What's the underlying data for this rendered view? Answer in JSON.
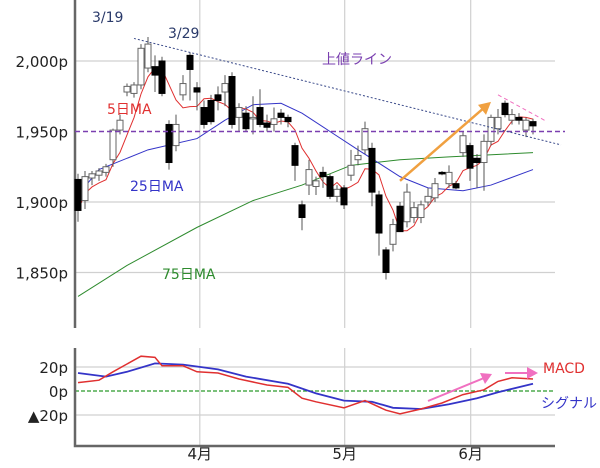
{
  "chart_data": [
    {
      "type": "candlestick",
      "x_unit": "trading day index",
      "y_unit": "p",
      "ylim": [
        1810,
        2043
      ],
      "y_ticks": [
        {
          "value": 2000,
          "label": "2,000p"
        },
        {
          "value": 1950,
          "label": "1,950p",
          "color": "#7a3fb0"
        },
        {
          "value": 1900,
          "label": "1,900p"
        },
        {
          "value": 1850,
          "label": "1,850p"
        }
      ],
      "month_ticks": [
        {
          "x": 17.4,
          "label": "4月"
        },
        {
          "x": 38.1,
          "label": "5月"
        },
        {
          "x": 56.1,
          "label": "6月"
        }
      ],
      "grid": true,
      "ohlc": [
        [
          1916,
          1920,
          1886,
          1894
        ],
        [
          1901,
          1922,
          1895,
          1918
        ],
        [
          1917,
          1922,
          1912,
          1920
        ],
        [
          1919,
          1924,
          1915,
          1922
        ],
        [
          1921,
          1927,
          1918,
          1925
        ],
        [
          1930,
          1952,
          1925,
          1951
        ],
        [
          1951,
          1962,
          1948,
          1958
        ],
        [
          1978,
          1984,
          1975,
          1982
        ],
        [
          1977,
          1985,
          1974,
          1983
        ],
        [
          1983,
          2012,
          1980,
          2009
        ],
        [
          1995,
          2017,
          1992,
          2012
        ],
        [
          1996,
          2004,
          1978,
          1990
        ],
        [
          2000,
          2003,
          1975,
          1977
        ],
        [
          1955,
          1958,
          1923,
          1928
        ],
        [
          1940,
          1962,
          1936,
          1955
        ],
        [
          1976,
          1990,
          1972,
          1984
        ],
        [
          2004,
          2006,
          1972,
          1994
        ],
        [
          1981,
          1985,
          1965,
          1978
        ],
        [
          1967,
          1972,
          1952,
          1955
        ],
        [
          1972,
          1976,
          1955,
          1957
        ],
        [
          1976,
          1982,
          1965,
          1972
        ],
        [
          1978,
          1990,
          1968,
          1984
        ],
        [
          1989,
          1992,
          1952,
          1955
        ],
        [
          1960,
          1970,
          1950,
          1967
        ],
        [
          1963,
          1968,
          1950,
          1952
        ],
        [
          1959,
          1975,
          1948,
          1960
        ],
        [
          1967,
          1980,
          1953,
          1955
        ],
        [
          1956,
          1962,
          1950,
          1953
        ],
        [
          1955,
          1967,
          1950,
          1959
        ],
        [
          1963,
          1966,
          1955,
          1960
        ],
        [
          1960,
          1962,
          1953,
          1957
        ],
        [
          1940,
          1942,
          1915,
          1926
        ],
        [
          1898,
          1901,
          1880,
          1889
        ],
        [
          1912,
          1930,
          1905,
          1923
        ],
        [
          1911,
          1918,
          1905,
          1915
        ],
        [
          1921,
          1925,
          1910,
          1918
        ],
        [
          1918,
          1920,
          1902,
          1904
        ],
        [
          1904,
          1912,
          1900,
          1909
        ],
        [
          1910,
          1912,
          1895,
          1898
        ],
        [
          1919,
          1937,
          1915,
          1926
        ],
        [
          1930,
          1940,
          1926,
          1933
        ],
        [
          1937,
          1957,
          1934,
          1952
        ],
        [
          1938,
          1942,
          1897,
          1907
        ],
        [
          1905,
          1908,
          1862,
          1878
        ],
        [
          1866,
          1868,
          1845,
          1850
        ],
        [
          1870,
          1888,
          1865,
          1884
        ],
        [
          1897,
          1900,
          1879,
          1879
        ],
        [
          1886,
          1913,
          1882,
          1907
        ],
        [
          1889,
          1900,
          1885,
          1896
        ],
        [
          1889,
          1901,
          1885,
          1898
        ],
        [
          1900,
          1910,
          1897,
          1904
        ],
        [
          1903,
          1917,
          1900,
          1913
        ],
        [
          1921,
          1922,
          1919,
          1920
        ],
        [
          1913,
          1926,
          1910,
          1921
        ],
        [
          1913,
          1915,
          1909,
          1910
        ],
        [
          1935,
          1950,
          1932,
          1947
        ],
        [
          1940,
          1942,
          1915,
          1924
        ],
        [
          1931,
          1934,
          1910,
          1928
        ],
        [
          1928,
          1948,
          1908,
          1943
        ],
        [
          1943,
          1962,
          1940,
          1960
        ],
        [
          1952,
          1966,
          1948,
          1960
        ],
        [
          1970,
          1972,
          1960,
          1962
        ],
        [
          1958,
          1966,
          1955,
          1962
        ],
        [
          1960,
          1963,
          1955,
          1958
        ],
        [
          1951,
          1960,
          1946,
          1958
        ],
        [
          1957,
          1959,
          1948,
          1954
        ]
      ],
      "ma_lines": [
        {
          "name": "5日MA",
          "color": "#e03030",
          "period": 5
        },
        {
          "name": "25日MA",
          "color": "#3434c8",
          "points": [
            [
              0,
              1905
            ],
            [
              3,
              1923
            ],
            [
              10,
              1937
            ],
            [
              17,
              1945
            ],
            [
              21,
              1958
            ],
            [
              25,
              1969
            ],
            [
              29,
              1970
            ],
            [
              32,
              1963
            ],
            [
              36,
              1950
            ],
            [
              40,
              1937
            ],
            [
              46,
              1918
            ],
            [
              50,
              1910
            ],
            [
              55,
              1908
            ],
            [
              59,
              1912
            ],
            [
              65,
              1923
            ]
          ]
        },
        {
          "name": "75日MA",
          "color": "#2e8b2e",
          "points": [
            [
              0,
              1833
            ],
            [
              7,
              1855
            ],
            [
              17,
              1882
            ],
            [
              25,
              1901
            ],
            [
              32,
              1912
            ],
            [
              39,
              1926
            ],
            [
              46,
              1930
            ],
            [
              53,
              1932
            ],
            [
              65,
              1935
            ]
          ]
        }
      ],
      "reference_line": {
        "value": 1950,
        "color": "#7a3fb0",
        "style": "dashed"
      },
      "annotations": [
        {
          "text": "3/19",
          "color": "#2a3a6a"
        },
        {
          "text": "3/29",
          "color": "#2a3a6a"
        },
        {
          "text": "上値ライン",
          "color": "#7a3fb0",
          "line": [
            [
              8,
              2016
            ],
            [
              69,
              1940.5
            ]
          ]
        }
      ],
      "orange_arrow": {
        "color": "#f0a040",
        "from": [
          46,
          1915
        ],
        "to": [
          59,
          1971
        ]
      },
      "pink_trend": {
        "color": "#f070c0",
        "from": [
          60,
          1976
        ],
        "to": [
          67,
          1957
        ]
      }
    },
    {
      "type": "line",
      "ylim": [
        -46,
        36
      ],
      "y_ticks": [
        {
          "value": 20,
          "label": "20p"
        },
        {
          "value": 0,
          "label": "0p",
          "color": "#2a9a2a"
        },
        {
          "value": -20,
          "label": "▲20p"
        }
      ],
      "zero_line": {
        "color": "#2a9a2a",
        "style": "dashed"
      },
      "series": [
        {
          "name": "MACD",
          "color": "#e03030",
          "points": [
            [
              0,
              7
            ],
            [
              3,
              9
            ],
            [
              5,
              16
            ],
            [
              9,
              29
            ],
            [
              11,
              28
            ],
            [
              12,
              21
            ],
            [
              15,
              21
            ],
            [
              17,
              16
            ],
            [
              20,
              15
            ],
            [
              23,
              10
            ],
            [
              27,
              5
            ],
            [
              30,
              3
            ],
            [
              32,
              -6
            ],
            [
              34,
              -9
            ],
            [
              38,
              -14
            ],
            [
              41,
              -8
            ],
            [
              44,
              -16
            ],
            [
              46,
              -19
            ],
            [
              49,
              -15
            ],
            [
              52,
              -10
            ],
            [
              55,
              -3
            ],
            [
              58,
              1
            ],
            [
              60,
              8
            ],
            [
              62,
              11
            ],
            [
              65,
              10
            ]
          ]
        },
        {
          "name": "シグナル",
          "color": "#3434c8",
          "points": [
            [
              0,
              15
            ],
            [
              4,
              12
            ],
            [
              7,
              16
            ],
            [
              11,
              23
            ],
            [
              15,
              22
            ],
            [
              20,
              18
            ],
            [
              24,
              12
            ],
            [
              30,
              6
            ],
            [
              34,
              -2
            ],
            [
              38,
              -8
            ],
            [
              42,
              -9
            ],
            [
              45,
              -14
            ],
            [
              49,
              -15
            ],
            [
              53,
              -11
            ],
            [
              57,
              -6
            ],
            [
              60,
              -1
            ],
            [
              65,
              6
            ]
          ]
        }
      ],
      "arrow_color": "#f070c0"
    }
  ]
}
